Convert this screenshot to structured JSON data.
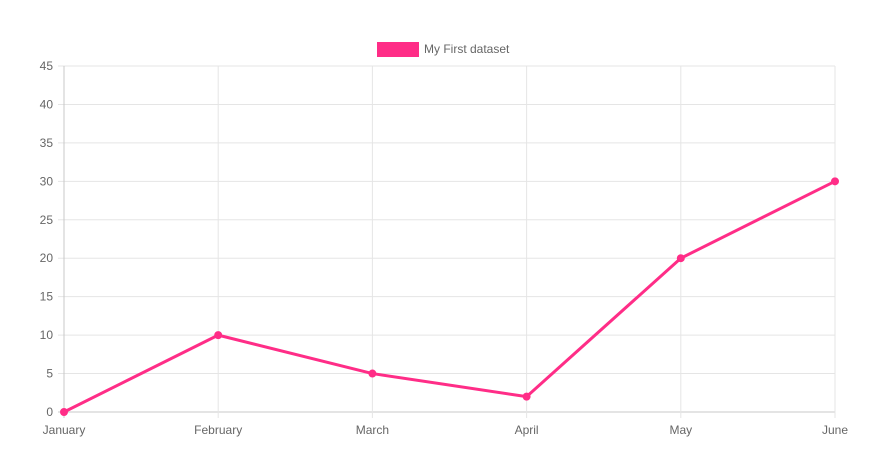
{
  "chart_data": {
    "type": "line",
    "categories": [
      "January",
      "February",
      "March",
      "April",
      "May",
      "June"
    ],
    "series": [
      {
        "name": "My First dataset",
        "values": [
          0,
          10,
          5,
          2,
          20,
          30
        ],
        "color": "#ff2d87"
      }
    ],
    "ylim": [
      0,
      45
    ],
    "yticks": [
      0,
      5,
      10,
      15,
      20,
      25,
      30,
      35,
      40,
      45
    ],
    "grid": true,
    "legend_position": "top-center",
    "gridline_color": "#e5e5e5",
    "text_color": "#666666"
  }
}
